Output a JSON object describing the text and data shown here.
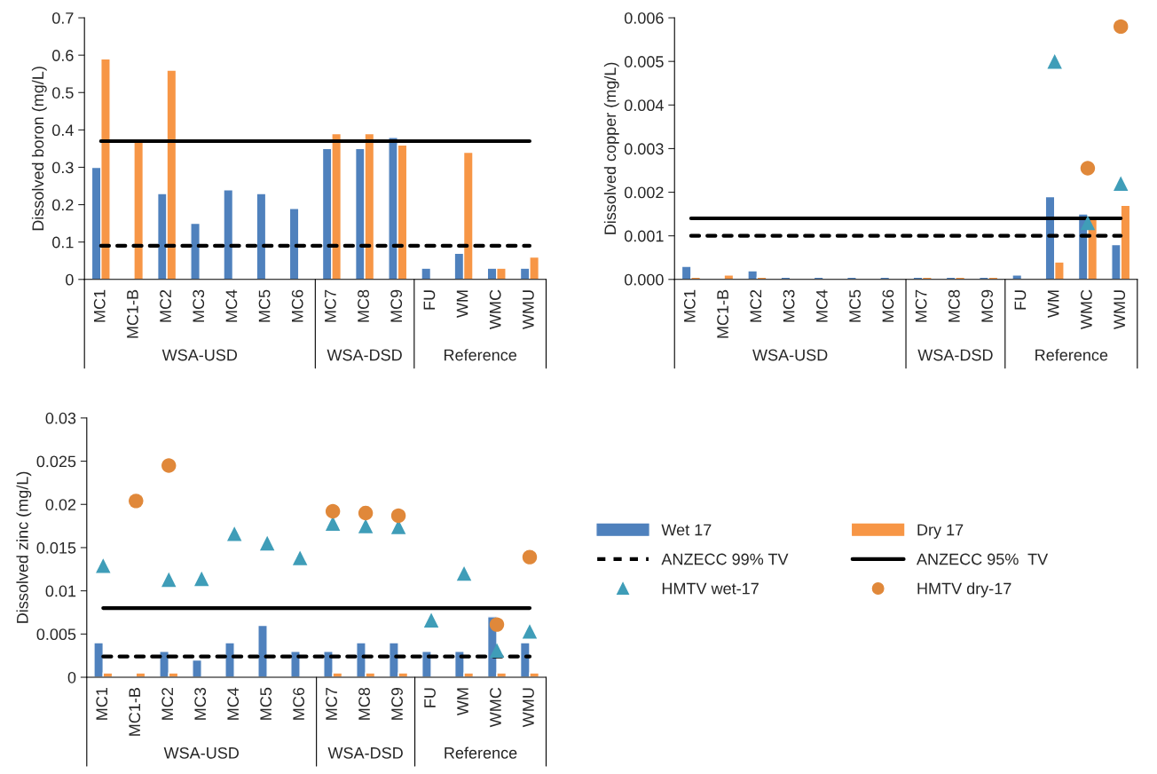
{
  "chart_data": [
    {
      "type": "bar",
      "ylabel": "Dissolved boron (mg/L)",
      "categories": [
        "MC1",
        "MC1-B",
        "MC2",
        "MC3",
        "MC4",
        "MC5",
        "MC6",
        "MC7",
        "MC8",
        "MC9",
        "FU",
        "WM",
        "WMC",
        "WMU"
      ],
      "series": [
        {
          "color": "#4f81bd",
          "values": [
            0.3,
            null,
            0.23,
            0.15,
            0.24,
            0.23,
            0.19,
            0.35,
            0.35,
            0.38,
            0.03,
            0.07,
            0.03,
            0.03
          ]
        },
        {
          "color": "#f79646",
          "values": [
            0.59,
            0.37,
            0.56,
            null,
            null,
            null,
            null,
            0.39,
            0.39,
            0.36,
            null,
            0.34,
            0.03,
            0.06
          ]
        },
        {
          "type": "line",
          "color": "#000000",
          "line_style": "dashed",
          "values": [
            0.09,
            0.09,
            0.09,
            0.09,
            0.09,
            0.09,
            0.09,
            0.09,
            0.09,
            0.09,
            0.09,
            0.09,
            0.09,
            0.09
          ]
        },
        {
          "type": "line",
          "color": "#000000",
          "line_style": "solid",
          "values": [
            0.37,
            0.37,
            0.37,
            0.37,
            0.37,
            0.37,
            0.37,
            0.37,
            0.37,
            0.37,
            0.37,
            0.37,
            0.37,
            0.37
          ]
        }
      ],
      "ylim": [
        0,
        0.7
      ],
      "yticks": [
        0,
        0.1,
        0.2,
        0.3,
        0.4,
        0.5,
        0.6,
        0.7
      ],
      "grid": false,
      "legend": false,
      "annotations": [
        "WSA-USD",
        "WSA-DSD",
        "Reference"
      ]
    },
    {
      "type": "bar",
      "ylabel": "Dissolved copper (mg/L)",
      "categories": [
        "MC1",
        "MC1-B",
        "MC2",
        "MC3",
        "MC4",
        "MC5",
        "MC6",
        "MC7",
        "MC8",
        "MC9",
        "FU",
        "WM",
        "WMC",
        "WMU"
      ],
      "series": [
        {
          "color": "#4f81bd",
          "values": [
            0.0003,
            null,
            0.0002,
            5e-05,
            5e-05,
            5e-05,
            5e-05,
            5e-05,
            5e-05,
            5e-05,
            0.0001,
            0.0019,
            0.0015,
            0.0008
          ]
        },
        {
          "color": "#f79646",
          "values": [
            5e-05,
            0.0001,
            5e-05,
            null,
            null,
            null,
            null,
            5e-05,
            5e-05,
            5e-05,
            null,
            0.0004,
            0.0014,
            0.0017
          ]
        },
        {
          "type": "line",
          "color": "#000000",
          "line_style": "dashed",
          "values": [
            0.001,
            0.001,
            0.001,
            0.001,
            0.001,
            0.001,
            0.001,
            0.001,
            0.001,
            0.001,
            0.001,
            0.001,
            0.001,
            0.001
          ]
        },
        {
          "type": "line",
          "color": "#000000",
          "line_style": "solid",
          "values": [
            0.0014,
            0.0014,
            0.0014,
            0.0014,
            0.0014,
            0.0014,
            0.0014,
            0.0014,
            0.0014,
            0.0014,
            0.0014,
            0.0014,
            0.0014,
            0.0014
          ]
        },
        {
          "type": "scatter",
          "color": "#3f9db8",
          "marker": "triangle",
          "values": [
            null,
            null,
            null,
            null,
            null,
            null,
            null,
            null,
            null,
            null,
            null,
            0.005,
            0.0013,
            0.0022
          ]
        },
        {
          "type": "scatter",
          "color": "#e0883a",
          "marker": "circle",
          "values": [
            null,
            null,
            null,
            null,
            null,
            null,
            null,
            null,
            null,
            null,
            null,
            null,
            0.00255,
            0.0058
          ]
        }
      ],
      "ylim": [
        0,
        0.006
      ],
      "yticks": [
        {
          "value": 0,
          "label": "0.000"
        },
        {
          "value": 0.001,
          "label": "0.001"
        },
        {
          "value": 0.002,
          "label": "0.002"
        },
        {
          "value": 0.003,
          "label": "0.003"
        },
        {
          "value": 0.004,
          "label": "0.004"
        },
        {
          "value": 0.005,
          "label": "0.005"
        },
        {
          "value": 0.006,
          "label": "0.006"
        }
      ],
      "grid": false,
      "legend": false,
      "annotations": [
        "WSA-USD",
        "WSA-DSD",
        "Reference"
      ]
    },
    {
      "type": "bar",
      "ylabel": "Dissolved zinc (mg/L)",
      "categories": [
        "MC1",
        "MC1-B",
        "MC2",
        "MC3",
        "MC4",
        "MC5",
        "MC6",
        "MC7",
        "MC8",
        "MC9",
        "FU",
        "WM",
        "WMC",
        "WMU"
      ],
      "series": [
        {
          "name": "Wet 17",
          "color": "#4f81bd",
          "values": [
            0.004,
            null,
            0.003,
            0.002,
            0.004,
            0.006,
            0.003,
            0.003,
            0.004,
            0.004,
            0.003,
            0.003,
            0.007,
            0.004
          ]
        },
        {
          "name": "Dry 17",
          "color": "#f79646",
          "values": [
            0.0005,
            0.0005,
            0.0005,
            null,
            null,
            null,
            null,
            0.0005,
            0.0005,
            0.0005,
            null,
            0.0005,
            0.0005,
            0.0005
          ]
        },
        {
          "type": "line",
          "name": "ANZECC 99% TV",
          "color": "#000000",
          "line_style": "dashed",
          "values": [
            0.0024,
            0.0024,
            0.0024,
            0.0024,
            0.0024,
            0.0024,
            0.0024,
            0.0024,
            0.0024,
            0.0024,
            0.0024,
            0.0024,
            0.0024,
            0.0024
          ]
        },
        {
          "type": "line",
          "name": "ANZECC 95%  TV",
          "color": "#000000",
          "line_style": "solid",
          "values": [
            0.008,
            0.008,
            0.008,
            0.008,
            0.008,
            0.008,
            0.008,
            0.008,
            0.008,
            0.008,
            0.008,
            0.008,
            0.008,
            0.008
          ]
        },
        {
          "type": "scatter",
          "name": "HMTV wet-17",
          "color": "#3f9db8",
          "marker": "triangle",
          "values": [
            0.0129,
            null,
            0.0113,
            0.0114,
            0.0166,
            0.0155,
            0.0138,
            0.0178,
            0.0175,
            0.0174,
            0.0066,
            0.012,
            0.0031,
            0.0053
          ]
        },
        {
          "type": "scatter",
          "name": "HMTV dry-17",
          "color": "#e0883a",
          "marker": "circle",
          "values": [
            null,
            0.0204,
            0.0245,
            null,
            null,
            null,
            null,
            0.0192,
            0.019,
            0.0187,
            null,
            null,
            0.0061,
            0.0139
          ]
        }
      ],
      "ylim": [
        0,
        0.03
      ],
      "yticks": [
        0,
        0.005,
        0.01,
        0.015,
        0.02,
        0.025,
        0.03
      ],
      "grid": false,
      "legend": "right",
      "annotations": [
        "WSA-USD",
        "WSA-DSD",
        "Reference"
      ]
    }
  ]
}
